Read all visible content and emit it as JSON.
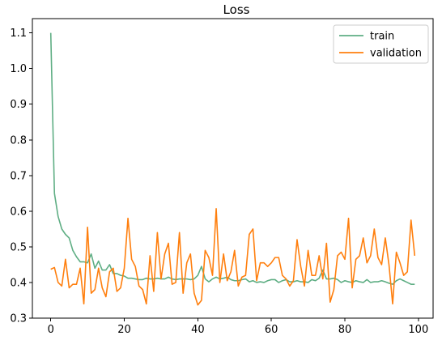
{
  "chart_data": {
    "type": "line",
    "title": "Loss",
    "xlabel": "",
    "ylabel": "",
    "xlim": [
      -5,
      104
    ],
    "ylim": [
      0.3,
      1.14
    ],
    "xticks": [
      0,
      20,
      40,
      60,
      80,
      100
    ],
    "yticks": [
      0.3,
      0.4,
      0.5,
      0.6,
      0.7,
      0.8,
      0.9,
      1.0,
      1.1
    ],
    "legend_position": "top-right",
    "grid": false,
    "series": [
      {
        "name": "train",
        "color": "#5fae84",
        "x": [
          0,
          1,
          2,
          3,
          4,
          5,
          6,
          7,
          8,
          9,
          10,
          11,
          12,
          13,
          14,
          15,
          16,
          17,
          18,
          19,
          20,
          21,
          22,
          23,
          24,
          25,
          26,
          27,
          28,
          29,
          30,
          31,
          32,
          33,
          34,
          35,
          36,
          37,
          38,
          39,
          40,
          41,
          42,
          43,
          44,
          45,
          46,
          47,
          48,
          49,
          50,
          51,
          52,
          53,
          54,
          55,
          56,
          57,
          58,
          59,
          60,
          61,
          62,
          63,
          64,
          65,
          66,
          67,
          68,
          69,
          70,
          71,
          72,
          73,
          74,
          75,
          76,
          77,
          78,
          79,
          80,
          81,
          82,
          83,
          84,
          85,
          86,
          87,
          88,
          89,
          90,
          91,
          92,
          93,
          94,
          95,
          96,
          97,
          98,
          99
        ],
        "y": [
          1.1,
          0.65,
          0.585,
          0.55,
          0.535,
          0.525,
          0.49,
          0.472,
          0.458,
          0.458,
          0.455,
          0.48,
          0.44,
          0.46,
          0.435,
          0.435,
          0.45,
          0.425,
          0.425,
          0.42,
          0.418,
          0.412,
          0.412,
          0.41,
          0.408,
          0.408,
          0.412,
          0.41,
          0.41,
          0.412,
          0.41,
          0.41,
          0.415,
          0.41,
          0.408,
          0.41,
          0.41,
          0.41,
          0.408,
          0.41,
          0.42,
          0.445,
          0.41,
          0.402,
          0.41,
          0.415,
          0.41,
          0.412,
          0.415,
          0.408,
          0.405,
          0.405,
          0.408,
          0.41,
          0.402,
          0.405,
          0.4,
          0.402,
          0.4,
          0.405,
          0.408,
          0.408,
          0.4,
          0.405,
          0.408,
          0.402,
          0.402,
          0.405,
          0.402,
          0.402,
          0.4,
          0.408,
          0.405,
          0.412,
          0.435,
          0.41,
          0.41,
          0.412,
          0.408,
          0.4,
          0.405,
          0.402,
          0.4,
          0.405,
          0.402,
          0.4,
          0.408,
          0.4,
          0.402,
          0.402,
          0.405,
          0.402,
          0.398,
          0.395,
          0.405,
          0.41,
          0.405,
          0.4,
          0.395,
          0.395
        ]
      },
      {
        "name": "validation",
        "color": "#ff7f0e",
        "x": [
          0,
          1,
          2,
          3,
          4,
          5,
          6,
          7,
          8,
          9,
          10,
          11,
          12,
          13,
          14,
          15,
          16,
          17,
          18,
          19,
          20,
          21,
          22,
          23,
          24,
          25,
          26,
          27,
          28,
          29,
          30,
          31,
          32,
          33,
          34,
          35,
          36,
          37,
          38,
          39,
          40,
          41,
          42,
          43,
          44,
          45,
          46,
          47,
          48,
          49,
          50,
          51,
          52,
          53,
          54,
          55,
          56,
          57,
          58,
          59,
          60,
          61,
          62,
          63,
          64,
          65,
          66,
          67,
          68,
          69,
          70,
          71,
          72,
          73,
          74,
          75,
          76,
          77,
          78,
          79,
          80,
          81,
          82,
          83,
          84,
          85,
          86,
          87,
          88,
          89,
          90,
          91,
          92,
          93,
          94,
          95,
          96,
          97,
          98,
          99
        ],
        "y": [
          0.437,
          0.442,
          0.4,
          0.39,
          0.465,
          0.385,
          0.395,
          0.395,
          0.44,
          0.34,
          0.555,
          0.37,
          0.38,
          0.44,
          0.385,
          0.36,
          0.43,
          0.44,
          0.375,
          0.385,
          0.44,
          0.58,
          0.465,
          0.445,
          0.39,
          0.38,
          0.34,
          0.475,
          0.375,
          0.54,
          0.41,
          0.48,
          0.51,
          0.395,
          0.4,
          0.54,
          0.37,
          0.455,
          0.48,
          0.37,
          0.337,
          0.35,
          0.49,
          0.47,
          0.42,
          0.607,
          0.4,
          0.48,
          0.405,
          0.43,
          0.49,
          0.39,
          0.415,
          0.42,
          0.535,
          0.55,
          0.405,
          0.455,
          0.455,
          0.445,
          0.455,
          0.47,
          0.47,
          0.42,
          0.41,
          0.39,
          0.405,
          0.52,
          0.445,
          0.39,
          0.49,
          0.42,
          0.42,
          0.475,
          0.41,
          0.51,
          0.345,
          0.38,
          0.475,
          0.485,
          0.465,
          0.58,
          0.385,
          0.465,
          0.475,
          0.525,
          0.455,
          0.475,
          0.55,
          0.47,
          0.45,
          0.525,
          0.45,
          0.34,
          0.485,
          0.455,
          0.42,
          0.43,
          0.575,
          0.475
        ]
      }
    ]
  }
}
